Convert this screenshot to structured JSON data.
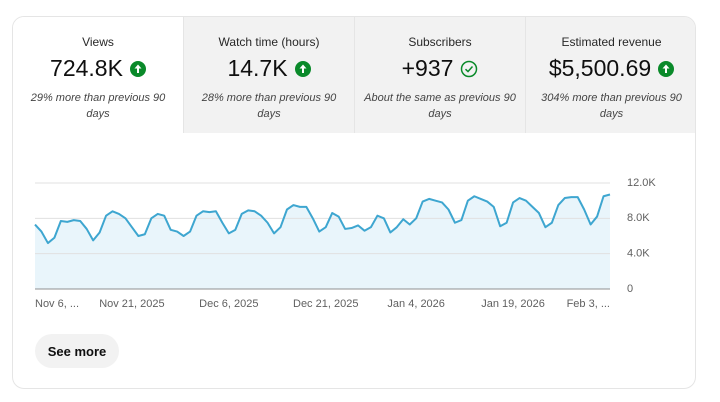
{
  "metrics": [
    {
      "label": "Views",
      "value": "724.8K",
      "note": "29% more than previous 90 days"
    },
    {
      "label": "Watch time (hours)",
      "value": "14.7K",
      "note": "28% more than previous 90 days"
    },
    {
      "label": "Subscribers",
      "value": "+937",
      "note": "About the same as previous 90 days"
    },
    {
      "label": "Estimated revenue",
      "value": "$5,500.69",
      "note": "304% more than previous 90 days"
    }
  ],
  "button": "See more",
  "chart_data": {
    "type": "line",
    "color": "#3ea6d0",
    "fill": "#e9f5fb",
    "grid": true,
    "ylim": [
      0,
      12000
    ],
    "yticks": [
      0,
      {
        "value": 4000,
        "label": "4.0K"
      },
      {
        "value": 8000,
        "label": "8.0K"
      },
      {
        "value": 12000,
        "label": "12.0K"
      }
    ],
    "categories": [
      "Nov 6, ...",
      null,
      null,
      null,
      null,
      null,
      null,
      null,
      null,
      null,
      null,
      null,
      null,
      null,
      null,
      "Nov 21, 2025",
      null,
      null,
      null,
      null,
      null,
      null,
      null,
      null,
      null,
      null,
      null,
      null,
      null,
      null,
      "Dec 6, 2025",
      null,
      null,
      null,
      null,
      null,
      null,
      null,
      null,
      null,
      null,
      null,
      null,
      null,
      null,
      "Dec 21, 2025",
      null,
      null,
      null,
      null,
      null,
      null,
      null,
      null,
      null,
      null,
      null,
      null,
      null,
      "Jan 4, 2026",
      null,
      null,
      null,
      null,
      null,
      null,
      null,
      null,
      null,
      null,
      null,
      null,
      null,
      null,
      "Jan 19, 2026",
      null,
      null,
      null,
      null,
      null,
      null,
      null,
      null,
      null,
      null,
      null,
      null,
      null,
      null,
      "Feb 3, ..."
    ],
    "values": [
      7300,
      6500,
      5200,
      5800,
      7700,
      7600,
      7800,
      7700,
      6800,
      5500,
      6400,
      8300,
      8800,
      8500,
      8000,
      7000,
      6000,
      6200,
      8000,
      8500,
      8300,
      6700,
      6500,
      6000,
      6500,
      8300,
      8800,
      8700,
      8800,
      7500,
      6300,
      6700,
      8500,
      8900,
      8800,
      8300,
      7500,
      6300,
      7000,
      9000,
      9500,
      9300,
      9300,
      8000,
      6500,
      7000,
      8600,
      8200,
      6800,
      6900,
      7200,
      6600,
      7000,
      8300,
      8000,
      6400,
      7000,
      7900,
      7300,
      8000,
      9900,
      10200,
      10000,
      9800,
      9000,
      7500,
      7800,
      10000,
      10500,
      10200,
      9900,
      9300,
      7100,
      7500,
      9800,
      10300,
      10000,
      9300,
      8600,
      7000,
      7500,
      9500,
      10300,
      10400,
      10400,
      9000,
      7300,
      8200,
      10500,
      10700
    ]
  }
}
